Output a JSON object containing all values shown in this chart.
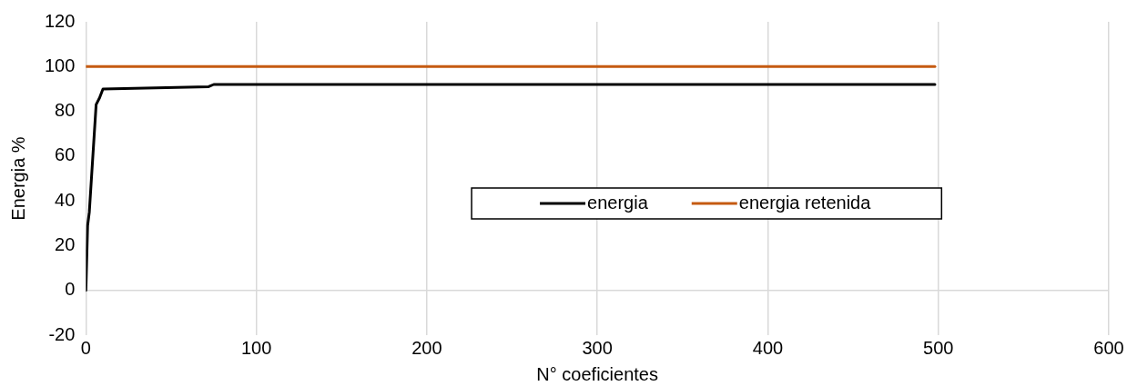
{
  "chart_data": {
    "type": "line",
    "xlabel": "N° coeficientes",
    "ylabel": "Energia %",
    "xlim": [
      0,
      600
    ],
    "xticks": [
      0,
      100,
      200,
      300,
      400,
      500,
      600
    ],
    "ylim": [
      -20,
      120
    ],
    "yticks": [
      -20,
      0,
      20,
      40,
      60,
      80,
      100,
      120
    ],
    "grid": "x",
    "legend": "center",
    "marker": "none",
    "line_style": "solid",
    "series": [
      {
        "name": "energia",
        "color": "#000000",
        "x": [
          0,
          1,
          2,
          6,
          8,
          10,
          72,
          75,
          498
        ],
        "values": [
          0,
          29,
          35,
          83,
          86,
          90,
          91,
          92,
          92
        ]
      },
      {
        "name": "energia retenida",
        "color": "#c55a11",
        "x": [
          0,
          498
        ],
        "values": [
          100,
          100
        ]
      }
    ]
  }
}
